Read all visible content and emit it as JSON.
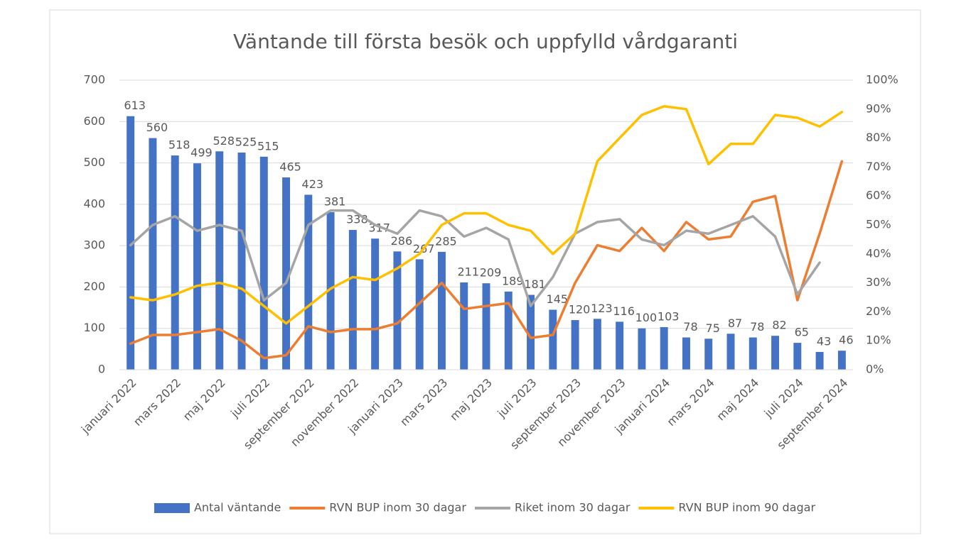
{
  "chart_data": {
    "type": "combo",
    "title": "Väntande till  första besök och uppfylld vårdgaranti",
    "categories": [
      "januari 2022",
      null,
      "mars 2022",
      null,
      "maj 2022",
      null,
      "juli 2022",
      null,
      "september 2022",
      null,
      "november 2022",
      null,
      "januari 2023",
      null,
      "mars 2023",
      null,
      "maj 2023",
      null,
      "juli 2023",
      null,
      "september 2023",
      null,
      "november 2023",
      null,
      "januari 2024",
      null,
      "mars 2024",
      null,
      "maj 2024",
      null,
      "juli 2024",
      null,
      "september 2024"
    ],
    "series": [
      {
        "name": "Antal väntande",
        "type": "bar",
        "color": "#4472c4",
        "values": [
          613,
          560,
          518,
          499,
          528,
          525,
          515,
          465,
          423,
          381,
          338,
          317,
          286,
          267,
          285,
          211,
          209,
          189,
          181,
          145,
          120,
          123,
          116,
          100,
          103,
          78,
          75,
          87,
          78,
          82,
          65,
          43,
          46
        ]
      },
      {
        "name": "RVN BUP inom 30 dagar",
        "type": "line",
        "axis": "y2",
        "color": "#ed7d31",
        "values": [
          9,
          12,
          12,
          13,
          14,
          10,
          4,
          5,
          15,
          13,
          14,
          14,
          16,
          23,
          30,
          21,
          22,
          23,
          11,
          12,
          30,
          43,
          41,
          49,
          41,
          51,
          45,
          46,
          58,
          60,
          24,
          47,
          72
        ]
      },
      {
        "name": "Riket inom 30 dagar",
        "type": "line",
        "axis": "y2",
        "color": "#a5a5a5",
        "values": [
          43,
          50,
          53,
          48,
          50,
          48,
          24,
          30,
          50,
          55,
          55,
          50,
          47,
          55,
          53,
          46,
          49,
          45,
          22,
          32,
          47,
          51,
          52,
          45,
          43,
          48,
          47,
          50,
          53,
          46,
          26,
          37,
          null
        ]
      },
      {
        "name": "RVN BUP inom 90 dagar",
        "type": "line",
        "axis": "y2",
        "color": "#ffc000",
        "values": [
          25,
          24,
          26,
          29,
          30,
          28,
          22,
          16,
          22,
          28,
          32,
          31,
          35,
          40,
          50,
          54,
          54,
          50,
          48,
          40,
          47,
          72,
          80,
          88,
          91,
          90,
          71,
          78,
          78,
          88,
          87,
          84,
          89
        ]
      }
    ],
    "ylim": [
      0,
      700
    ],
    "yticks": [
      0,
      100,
      200,
      300,
      400,
      500,
      600,
      700
    ],
    "y2lim": [
      0,
      100
    ],
    "y2ticks": [
      {
        "value": 0,
        "label": "0%"
      },
      {
        "value": 10,
        "label": "10%"
      },
      {
        "value": 20,
        "label": "20%"
      },
      {
        "value": 30,
        "label": "30%"
      },
      {
        "value": 40,
        "label": "40%"
      },
      {
        "value": 50,
        "label": "50%"
      },
      {
        "value": 60,
        "label": "60%"
      },
      {
        "value": 70,
        "label": "70%"
      },
      {
        "value": 80,
        "label": "80%"
      },
      {
        "value": 90,
        "label": "90%"
      },
      {
        "value": 100,
        "label": "100%"
      }
    ],
    "grid": true,
    "legend": "bottom"
  }
}
